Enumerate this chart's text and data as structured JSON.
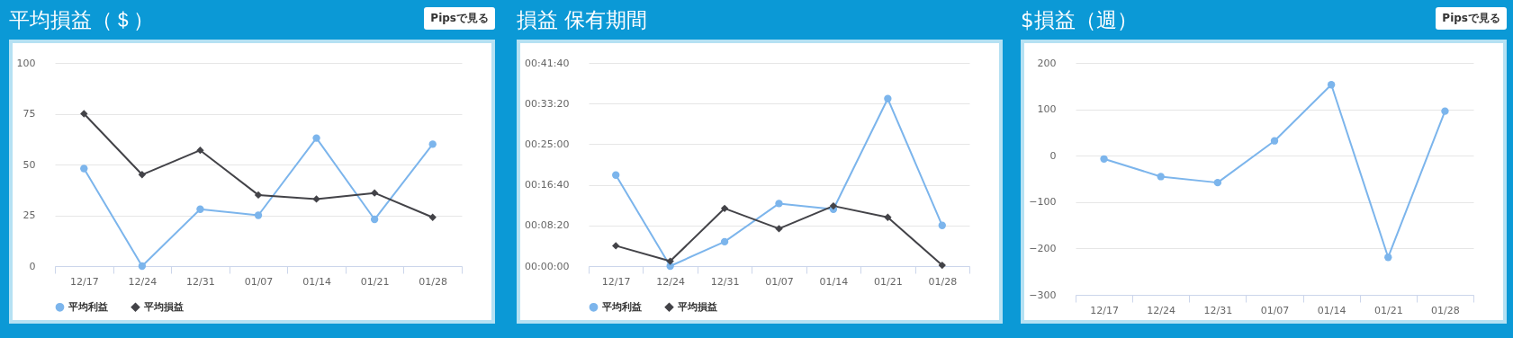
{
  "chart_data": [
    {
      "type": "line",
      "title": "平均損益（＄）",
      "annotations": [
        "Pipsで見る"
      ],
      "categories": [
        "12/17",
        "12/24",
        "12/31",
        "01/07",
        "01/14",
        "01/21",
        "01/28"
      ],
      "series": [
        {
          "name": "平均利益",
          "color": "#7cb5ec",
          "marker": "circle",
          "values": [
            48,
            0,
            28,
            25,
            63,
            23,
            60
          ]
        },
        {
          "name": "平均損益",
          "color": "#434348",
          "marker": "diamond",
          "values": [
            75,
            45,
            57,
            35,
            33,
            36,
            24
          ]
        }
      ],
      "ylim": [
        0,
        100
      ],
      "yticks": [
        0,
        25,
        50,
        75,
        100
      ],
      "grid": "y",
      "legend": "bottom"
    },
    {
      "type": "line",
      "title": "損益 保有期間",
      "categories": [
        "12/17",
        "12/24",
        "12/31",
        "01/07",
        "01/14",
        "01/21",
        "01/28"
      ],
      "series": [
        {
          "name": "平均利益",
          "color": "#7cb5ec",
          "marker": "circle",
          "values": [
            1120,
            0,
            300,
            770,
            700,
            2060,
            500
          ]
        },
        {
          "name": "平均損益",
          "color": "#434348",
          "marker": "diamond",
          "values": [
            250,
            60,
            710,
            460,
            740,
            600,
            10
          ]
        }
      ],
      "ylim": [
        0,
        2500
      ],
      "yticks": [
        {
          "value": 0,
          "label": "00:00:00"
        },
        {
          "value": 500,
          "label": "00:08:20"
        },
        {
          "value": 1000,
          "label": "00:16:40"
        },
        {
          "value": 1500,
          "label": "00:25:00"
        },
        {
          "value": 2000,
          "label": "00:33:20"
        },
        {
          "value": 2500,
          "label": "00:41:40"
        }
      ],
      "grid": "y",
      "legend": "bottom"
    },
    {
      "type": "line",
      "title": "$損益（週）",
      "annotations": [
        "Pipsで見る"
      ],
      "categories": [
        "12/17",
        "12/24",
        "12/31",
        "01/07",
        "01/14",
        "01/21",
        "01/28"
      ],
      "series": [
        {
          "color": "#7cb5ec",
          "marker": "circle",
          "values": [
            -7,
            -45,
            -58,
            32,
            153,
            -219,
            96
          ]
        }
      ],
      "ylim": [
        -300,
        200
      ],
      "yticks": [
        -300,
        -200,
        -100,
        0,
        100,
        200
      ],
      "grid": "y",
      "legend": false
    }
  ]
}
